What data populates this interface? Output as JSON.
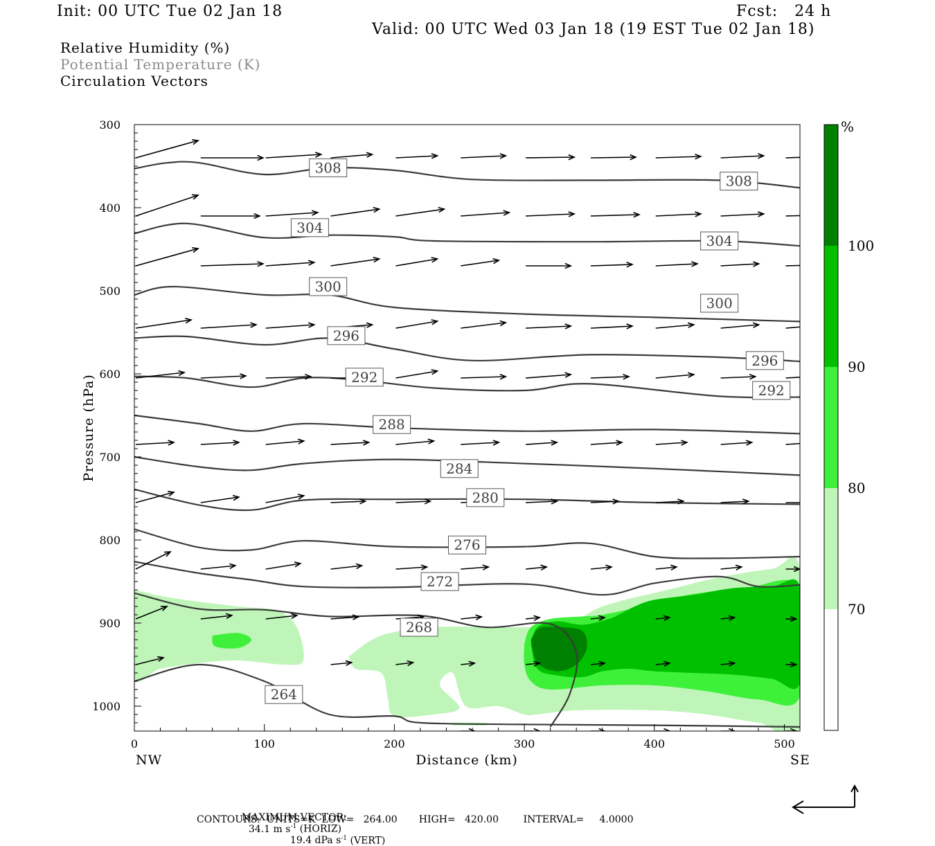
{
  "header": {
    "init": "Init: 00 UTC Tue 02 Jan 18",
    "fcst": "Fcst:   24 h",
    "valid": "Valid: 00 UTC Wed 03 Jan 18 (19 EST Tue 02 Jan 18)"
  },
  "legend": {
    "line1": "Relative Humidity (%)",
    "line2": "Potential Temperature (K)",
    "line3": "Circulation Vectors"
  },
  "footer": {
    "max_vector_label": "MAXIMUM VECTOR:",
    "horiz_value": "34.1 m s",
    "horiz_unit_suffix": " (HORIZ)",
    "vert_value": "19.4 dPa s",
    "vert_unit_suffix": " (VERT)",
    "exp": "-1",
    "contours": "CONTOURS:  UNITS=K  LOW=   264.00       HIGH=   420.00        INTERVAL=     4.0000"
  },
  "colors": {
    "rh_70_80": "#bff5b8",
    "rh_80_90": "#3ef03a",
    "rh_90_100": "#00c000",
    "rh_100": "#008000",
    "contour": "#3a3a3a",
    "label_text": "#404040",
    "legend_gray": "#8a8a8a"
  },
  "chart_data": {
    "type": "cross-section",
    "xlabel": "Distance (km)",
    "ylabel": "Pressure (hPa)",
    "x_ticks": [
      0,
      100,
      200,
      300,
      400,
      500
    ],
    "y_ticks": [
      300,
      400,
      500,
      600,
      700,
      800,
      900,
      1000
    ],
    "xlim": [
      0,
      512
    ],
    "ylim": [
      300,
      1030
    ],
    "x_end_labels": {
      "left": "NW",
      "right": "SE"
    },
    "colorbar": {
      "unit": "%",
      "levels": [
        70,
        80,
        90,
        100
      ],
      "ticks": [
        "70",
        "80",
        "90",
        "100"
      ]
    },
    "theta_contours": [
      {
        "value": 308,
        "points": [
          [
            0,
            353
          ],
          [
            25,
            346
          ],
          [
            50,
            346
          ],
          [
            100,
            360
          ],
          [
            150,
            352
          ],
          [
            200,
            355
          ],
          [
            260,
            366
          ],
          [
            350,
            367
          ],
          [
            450,
            367
          ],
          [
            512,
            376
          ]
        ],
        "labels": [
          [
            149,
            352
          ],
          [
            465,
            368
          ]
        ]
      },
      {
        "value": 304,
        "points": [
          [
            0,
            431
          ],
          [
            40,
            419
          ],
          [
            100,
            436
          ],
          [
            150,
            433
          ],
          [
            200,
            435
          ],
          [
            230,
            440
          ],
          [
            350,
            441
          ],
          [
            450,
            440
          ],
          [
            512,
            446
          ]
        ],
        "labels": [
          [
            135,
            424
          ],
          [
            450,
            440
          ]
        ]
      },
      {
        "value": 300,
        "points": [
          [
            0,
            505
          ],
          [
            30,
            495
          ],
          [
            100,
            505
          ],
          [
            150,
            505
          ],
          [
            200,
            520
          ],
          [
            300,
            528
          ],
          [
            400,
            532
          ],
          [
            512,
            537
          ]
        ],
        "labels": [
          [
            149,
            495
          ],
          [
            450,
            515
          ]
        ]
      },
      {
        "value": 296,
        "points": [
          [
            0,
            557
          ],
          [
            40,
            555
          ],
          [
            100,
            565
          ],
          [
            150,
            557
          ],
          [
            200,
            570
          ],
          [
            260,
            584
          ],
          [
            350,
            577
          ],
          [
            450,
            580
          ],
          [
            512,
            585
          ]
        ],
        "labels": [
          [
            163,
            554
          ],
          [
            485,
            584
          ]
        ]
      },
      {
        "value": 292,
        "points": [
          [
            0,
            603
          ],
          [
            40,
            605
          ],
          [
            90,
            616
          ],
          [
            130,
            605
          ],
          [
            170,
            607
          ],
          [
            230,
            617
          ],
          [
            300,
            620
          ],
          [
            350,
            612
          ],
          [
            450,
            627
          ],
          [
            512,
            628
          ]
        ],
        "labels": [
          [
            177,
            604
          ],
          [
            490,
            620
          ]
        ]
      },
      {
        "value": 288,
        "points": [
          [
            0,
            650
          ],
          [
            50,
            660
          ],
          [
            90,
            669
          ],
          [
            130,
            660
          ],
          [
            200,
            665
          ],
          [
            300,
            669
          ],
          [
            400,
            667
          ],
          [
            512,
            672
          ]
        ],
        "labels": [
          [
            198,
            661
          ]
        ]
      },
      {
        "value": 284,
        "points": [
          [
            0,
            700
          ],
          [
            50,
            712
          ],
          [
            90,
            716
          ],
          [
            130,
            708
          ],
          [
            200,
            703
          ],
          [
            300,
            708
          ],
          [
            400,
            714
          ],
          [
            512,
            722
          ]
        ],
        "labels": [
          [
            250,
            714
          ]
        ]
      },
      {
        "value": 280,
        "points": [
          [
            0,
            739
          ],
          [
            50,
            758
          ],
          [
            90,
            764
          ],
          [
            130,
            752
          ],
          [
            200,
            751
          ],
          [
            300,
            751
          ],
          [
            400,
            755
          ],
          [
            512,
            757
          ]
        ],
        "labels": [
          [
            270,
            749
          ]
        ]
      },
      {
        "value": 276,
        "points": [
          [
            0,
            787
          ],
          [
            50,
            809
          ],
          [
            90,
            812
          ],
          [
            130,
            801
          ],
          [
            200,
            808
          ],
          [
            300,
            808
          ],
          [
            350,
            804
          ],
          [
            400,
            820
          ],
          [
            450,
            822
          ],
          [
            512,
            820
          ]
        ],
        "labels": [
          [
            256,
            806
          ]
        ]
      },
      {
        "value": 272,
        "points": [
          [
            0,
            826
          ],
          [
            50,
            840
          ],
          [
            90,
            848
          ],
          [
            130,
            856
          ],
          [
            200,
            857
          ],
          [
            300,
            853
          ],
          [
            360,
            866
          ],
          [
            400,
            852
          ],
          [
            450,
            844
          ],
          [
            480,
            856
          ],
          [
            512,
            854
          ]
        ],
        "labels": [
          [
            235,
            850
          ]
        ]
      },
      {
        "value": 268,
        "points": [
          [
            0,
            864
          ],
          [
            50,
            883
          ],
          [
            100,
            884
          ],
          [
            150,
            892
          ],
          [
            220,
            891
          ],
          [
            270,
            905
          ],
          [
            320,
            901
          ],
          [
            340,
            935
          ],
          [
            335,
            985
          ],
          [
            320,
            1025
          ]
        ],
        "labels": [
          [
            219,
            905
          ]
        ]
      },
      {
        "value": 264,
        "points": [
          [
            0,
            970
          ],
          [
            50,
            950
          ],
          [
            100,
            970
          ],
          [
            150,
            1010
          ],
          [
            200,
            1012
          ],
          [
            220,
            1020
          ],
          [
            300,
            1022
          ],
          [
            400,
            1023
          ],
          [
            512,
            1025
          ]
        ],
        "labels": [
          [
            115,
            986
          ]
        ]
      }
    ]
  }
}
